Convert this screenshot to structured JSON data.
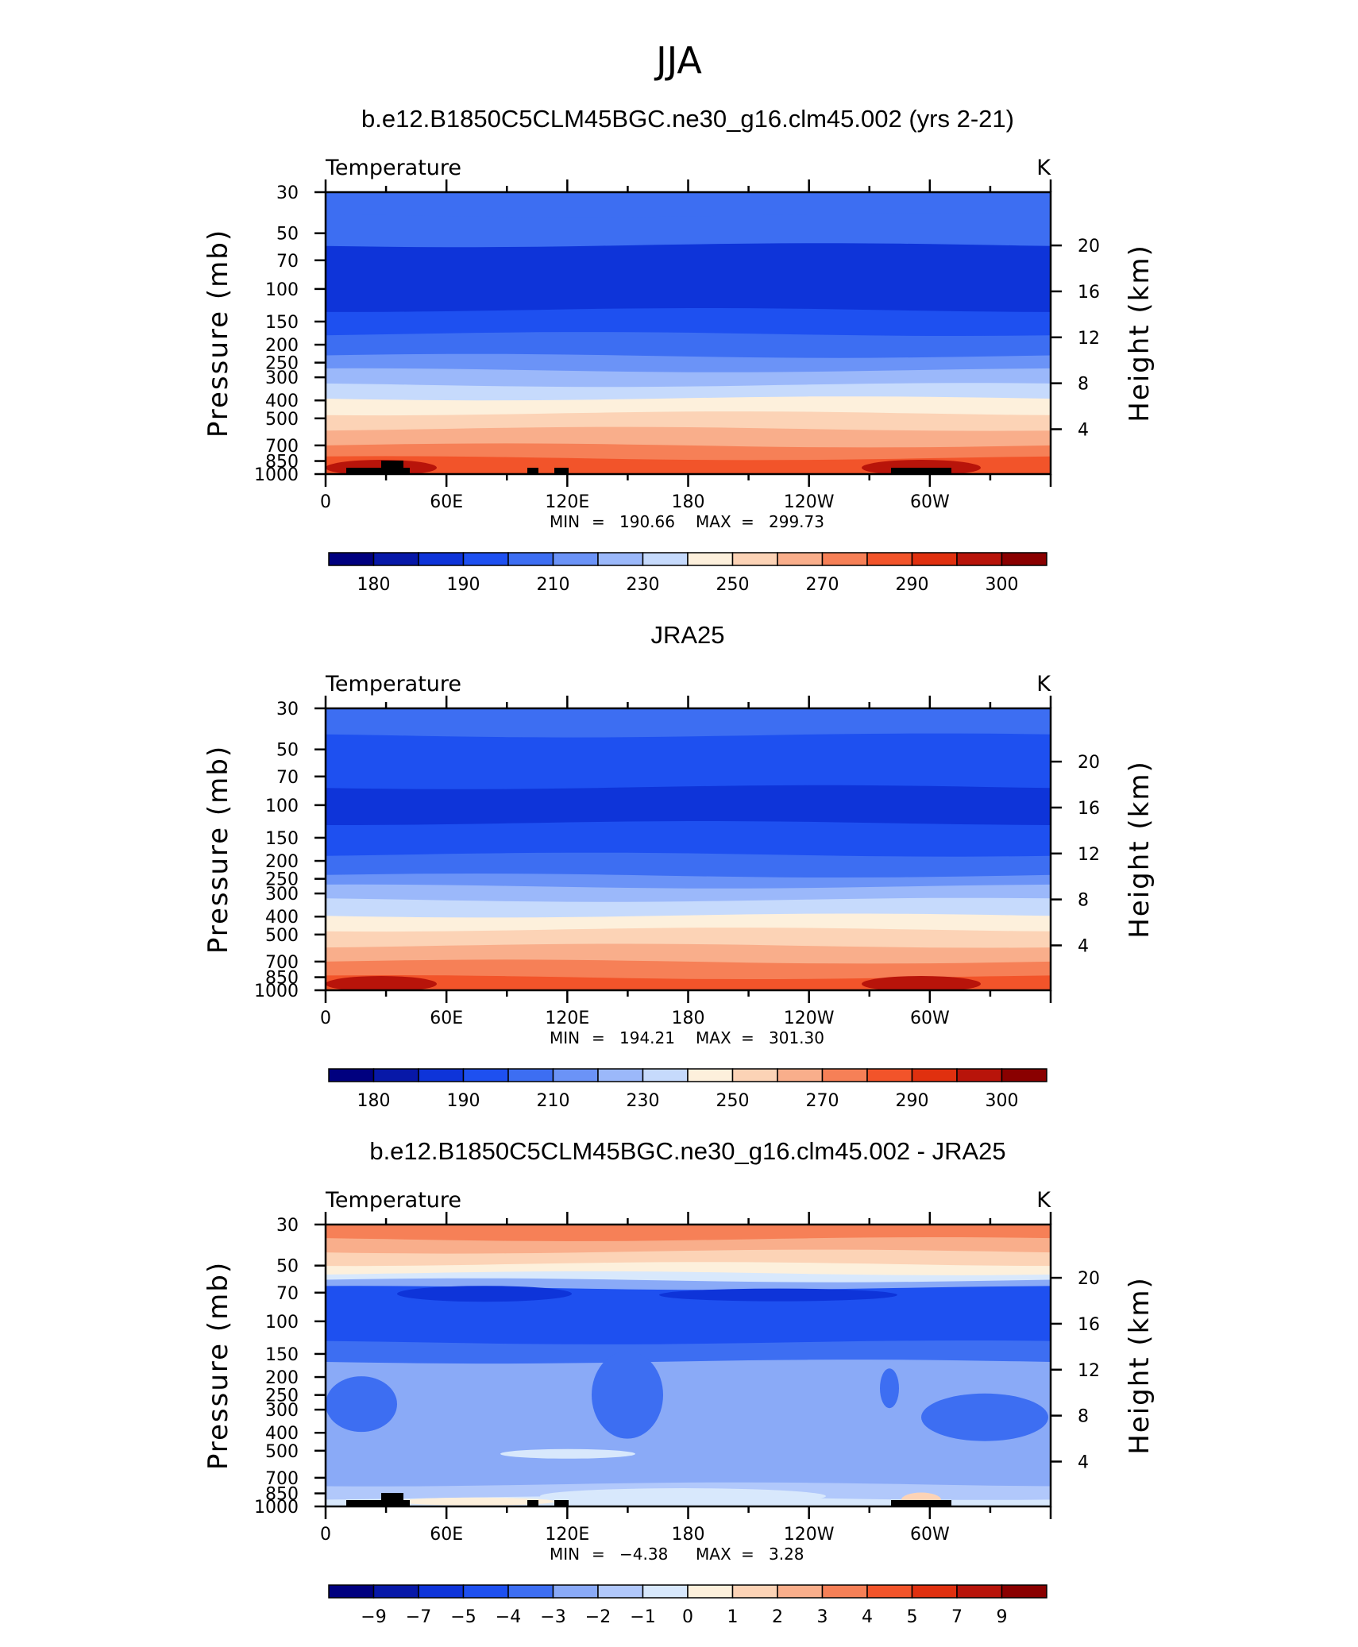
{
  "figure_title": "JJA",
  "chart_data": [
    {
      "type": "heatmap",
      "title": "b.e12.B1850C5CLM45BGC.ne30_g16.clm45.002 (yrs 2-21)",
      "left_label": "Temperature",
      "right_label": "K",
      "ylabel": "Pressure  (mb)",
      "ylabel_right": "Height  (km)",
      "x_ticks": [
        "0",
        "60E",
        "120E",
        "180",
        "120W",
        "60W"
      ],
      "y_ticks": [
        "30",
        "50",
        "70",
        "100",
        "150",
        "200",
        "250",
        "300",
        "400",
        "500",
        "700",
        "850",
        "1000"
      ],
      "y_right_ticks": [
        "20",
        "16",
        "12",
        "8",
        "4"
      ],
      "min_label": "MIN",
      "min_value": "190.66",
      "max_label": "MAX",
      "max_value": "299.73",
      "colorbar_labels": [
        "180",
        "190",
        "210",
        "230",
        "250",
        "270",
        "290",
        "300"
      ],
      "levels": [
        {
          "p_top": 30,
          "p_bottom": 40,
          "bin": 4
        },
        {
          "p_top": 40,
          "p_bottom": 58,
          "bin": 4
        },
        {
          "p_top": 58,
          "p_bottom": 130,
          "bin": 2
        },
        {
          "p_top": 130,
          "p_bottom": 175,
          "bin": 3
        },
        {
          "p_top": 175,
          "p_bottom": 230,
          "bin": 4
        },
        {
          "p_top": 230,
          "p_bottom": 275,
          "bin": 5
        },
        {
          "p_top": 275,
          "p_bottom": 330,
          "bin": 6
        },
        {
          "p_top": 330,
          "p_bottom": 390,
          "bin": 7
        },
        {
          "p_top": 390,
          "p_bottom": 470,
          "bin": 8
        },
        {
          "p_top": 470,
          "p_bottom": 570,
          "bin": 9
        },
        {
          "p_top": 570,
          "p_bottom": 700,
          "bin": 10
        },
        {
          "p_top": 700,
          "p_bottom": 820,
          "bin": 11
        },
        {
          "p_top": 820,
          "p_bottom": 1000,
          "bin": 12
        }
      ]
    },
    {
      "type": "heatmap",
      "title": "JRA25",
      "left_label": "Temperature",
      "right_label": "K",
      "ylabel": "Pressure  (mb)",
      "ylabel_right": "Height  (km)",
      "x_ticks": [
        "0",
        "60E",
        "120E",
        "180",
        "120W",
        "60W"
      ],
      "y_ticks": [
        "30",
        "50",
        "70",
        "100",
        "150",
        "200",
        "250",
        "300",
        "400",
        "500",
        "700",
        "850",
        "1000"
      ],
      "y_right_ticks": [
        "20",
        "16",
        "12",
        "8",
        "4"
      ],
      "min_label": "MIN",
      "min_value": "194.21",
      "max_label": "MAX",
      "max_value": "301.30",
      "colorbar_labels": [
        "180",
        "190",
        "210",
        "230",
        "250",
        "270",
        "290",
        "300"
      ],
      "levels": [
        {
          "p_top": 30,
          "p_bottom": 42,
          "bin": 4
        },
        {
          "p_top": 42,
          "p_bottom": 80,
          "bin": 3
        },
        {
          "p_top": 80,
          "p_bottom": 125,
          "bin": 2
        },
        {
          "p_top": 125,
          "p_bottom": 185,
          "bin": 3
        },
        {
          "p_top": 185,
          "p_bottom": 240,
          "bin": 4
        },
        {
          "p_top": 240,
          "p_bottom": 275,
          "bin": 5
        },
        {
          "p_top": 275,
          "p_bottom": 325,
          "bin": 6
        },
        {
          "p_top": 325,
          "p_bottom": 395,
          "bin": 7
        },
        {
          "p_top": 395,
          "p_bottom": 470,
          "bin": 8
        },
        {
          "p_top": 470,
          "p_bottom": 575,
          "bin": 9
        },
        {
          "p_top": 575,
          "p_bottom": 700,
          "bin": 10
        },
        {
          "p_top": 700,
          "p_bottom": 850,
          "bin": 11
        },
        {
          "p_top": 850,
          "p_bottom": 1000,
          "bin": 12
        }
      ]
    },
    {
      "type": "heatmap",
      "title": "b.e12.B1850C5CLM45BGC.ne30_g16.clm45.002 - JRA25",
      "left_label": "Temperature",
      "right_label": "K",
      "ylabel": "Pressure  (mb)",
      "ylabel_right": "Height  (km)",
      "x_ticks": [
        "0",
        "60E",
        "120E",
        "180",
        "120W",
        "60W"
      ],
      "y_ticks": [
        "30",
        "50",
        "70",
        "100",
        "150",
        "200",
        "250",
        "300",
        "400",
        "500",
        "700",
        "850",
        "1000"
      ],
      "y_right_ticks": [
        "20",
        "16",
        "12",
        "8",
        "4"
      ],
      "min_label": "MIN",
      "min_value": "−4.38",
      "max_label": "MAX",
      "max_value": "3.28",
      "colorbar_labels": [
        "−9",
        "−7",
        "−5",
        "−4",
        "−3",
        "−2",
        "−1",
        "0",
        "1",
        "2",
        "3",
        "4",
        "5",
        "7",
        "9"
      ],
      "levels": [
        {
          "p_top": 30,
          "p_bottom": 36,
          "bin": 11
        },
        {
          "p_top": 36,
          "p_bottom": 42,
          "bin": 10
        },
        {
          "p_top": 42,
          "p_bottom": 49,
          "bin": 9
        },
        {
          "p_top": 49,
          "p_bottom": 55,
          "bin": 8
        },
        {
          "p_top": 55,
          "p_bottom": 60,
          "bin": 7
        },
        {
          "p_top": 60,
          "p_bottom": 66,
          "bin": 5
        },
        {
          "p_top": 66,
          "p_bottom": 130,
          "bin": 3
        },
        {
          "p_top": 130,
          "p_bottom": 165,
          "bin": 4
        },
        {
          "p_top": 165,
          "p_bottom": 760,
          "bin": 5
        },
        {
          "p_top": 760,
          "p_bottom": 900,
          "bin": 6
        },
        {
          "p_top": 900,
          "p_bottom": 1000,
          "bin": 7
        }
      ]
    }
  ],
  "colors": {
    "temperature_palette": [
      "#00007f",
      "#0718a8",
      "#0e34d9",
      "#1e50f0",
      "#3d6ef2",
      "#6b93f7",
      "#9bb8fa",
      "#c6dafc",
      "#fdf0dc",
      "#fcd3b6",
      "#f9ae8b",
      "#f68057",
      "#f2542a",
      "#e0300f",
      "#b8140a",
      "#8a0000"
    ],
    "difference_palette": [
      "#00007f",
      "#0718a8",
      "#0e34d9",
      "#1e50f0",
      "#3d6ef2",
      "#8aaaf7",
      "#b1c8fb",
      "#d8e8fc",
      "#fdf0dc",
      "#fcd3b6",
      "#f9ae8b",
      "#f68057",
      "#f2542a",
      "#e0300f",
      "#b8140a",
      "#8a0000"
    ],
    "topography": "#000000"
  }
}
